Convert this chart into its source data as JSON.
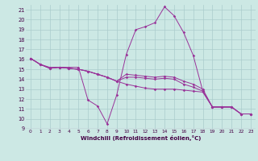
{
  "xlabel": "Windchill (Refroidissement éolien,°C)",
  "bg_color": "#cce8e4",
  "grid_color": "#aacccc",
  "line_color": "#993399",
  "x": [
    0,
    1,
    2,
    3,
    4,
    5,
    6,
    7,
    8,
    9,
    10,
    11,
    12,
    13,
    14,
    15,
    16,
    17,
    18,
    19,
    20,
    21,
    22,
    23
  ],
  "series1": [
    16.1,
    15.5,
    15.2,
    15.2,
    15.2,
    15.2,
    11.9,
    11.3,
    9.5,
    12.4,
    16.5,
    19.0,
    19.3,
    19.7,
    21.3,
    20.4,
    18.7,
    16.4,
    12.8,
    11.2,
    11.2,
    11.2,
    10.5,
    10.5
  ],
  "series2": [
    16.1,
    15.5,
    15.1,
    15.2,
    15.1,
    15.0,
    14.8,
    14.5,
    14.2,
    13.8,
    13.5,
    13.3,
    13.1,
    13.0,
    13.0,
    13.0,
    12.9,
    12.8,
    12.7,
    11.2,
    11.2,
    11.2,
    10.5,
    10.5
  ],
  "series3": [
    16.1,
    15.5,
    15.1,
    15.2,
    15.1,
    15.0,
    14.8,
    14.5,
    14.2,
    13.8,
    14.2,
    14.2,
    14.1,
    14.0,
    14.1,
    14.0,
    13.5,
    13.2,
    12.8,
    11.2,
    11.2,
    11.2,
    10.5,
    10.5
  ],
  "series4": [
    16.1,
    15.5,
    15.1,
    15.2,
    15.1,
    15.0,
    14.8,
    14.5,
    14.2,
    13.8,
    14.5,
    14.4,
    14.3,
    14.2,
    14.3,
    14.2,
    13.8,
    13.5,
    13.0,
    11.2,
    11.2,
    11.2,
    10.5,
    10.5
  ],
  "ylim": [
    9,
    21.5
  ],
  "yticks": [
    9,
    10,
    11,
    12,
    13,
    14,
    15,
    16,
    17,
    18,
    19,
    20,
    21
  ],
  "xlim": [
    -0.5,
    23.5
  ],
  "xticks": [
    0,
    1,
    2,
    3,
    4,
    5,
    6,
    7,
    8,
    9,
    10,
    11,
    12,
    13,
    14,
    15,
    16,
    17,
    18,
    19,
    20,
    21,
    22,
    23
  ]
}
